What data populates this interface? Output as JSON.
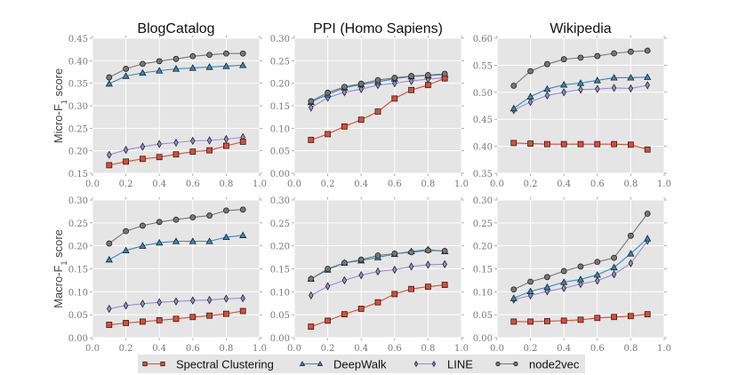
{
  "chart_data": [
    {
      "type": "line",
      "title": "BlogCatalog",
      "xlabel": "",
      "ylabel": "Micro-F1 score",
      "xlim": [
        0.0,
        1.0
      ],
      "ylim": [
        0.15,
        0.45
      ],
      "xticks": [
        "0.0",
        "0.2",
        "0.4",
        "0.6",
        "0.8",
        "1.0"
      ],
      "yticks": [
        "0.15",
        "0.20",
        "0.25",
        "0.30",
        "0.35",
        "0.40",
        "0.45"
      ],
      "grid": true,
      "x": [
        0.1,
        0.2,
        0.3,
        0.4,
        0.5,
        0.6,
        0.7,
        0.8,
        0.9
      ],
      "series": [
        {
          "name": "Spectral Clustering",
          "values": [
            0.168,
            0.176,
            0.182,
            0.186,
            0.192,
            0.198,
            0.201,
            0.211,
            0.22
          ]
        },
        {
          "name": "DeepWalk",
          "values": [
            0.349,
            0.366,
            0.373,
            0.378,
            0.382,
            0.384,
            0.386,
            0.388,
            0.39
          ]
        },
        {
          "name": "LINE",
          "values": [
            0.191,
            0.202,
            0.209,
            0.215,
            0.218,
            0.222,
            0.223,
            0.226,
            0.23
          ]
        },
        {
          "name": "node2vec",
          "values": [
            0.363,
            0.382,
            0.393,
            0.399,
            0.404,
            0.41,
            0.413,
            0.416,
            0.416
          ]
        }
      ]
    },
    {
      "type": "line",
      "title": "PPI (Homo Sapiens)",
      "xlabel": "",
      "ylabel": "",
      "xlim": [
        0.0,
        1.0
      ],
      "ylim": [
        0.0,
        0.3
      ],
      "xticks": [
        "0.0",
        "0.2",
        "0.4",
        "0.6",
        "0.8",
        "1.0"
      ],
      "yticks": [
        "0.00",
        "0.05",
        "0.10",
        "0.15",
        "0.20",
        "0.25",
        "0.30"
      ],
      "grid": true,
      "x": [
        0.1,
        0.2,
        0.3,
        0.4,
        0.5,
        0.6,
        0.7,
        0.8,
        0.9
      ],
      "series": [
        {
          "name": "Spectral Clustering",
          "values": [
            0.074,
            0.087,
            0.104,
            0.119,
            0.137,
            0.166,
            0.185,
            0.196,
            0.211
          ]
        },
        {
          "name": "DeepWalk",
          "values": [
            0.158,
            0.175,
            0.19,
            0.197,
            0.203,
            0.21,
            0.215,
            0.217,
            0.219
          ]
        },
        {
          "name": "LINE",
          "values": [
            0.146,
            0.168,
            0.18,
            0.187,
            0.196,
            0.2,
            0.205,
            0.209,
            0.212
          ]
        },
        {
          "name": "node2vec",
          "values": [
            0.16,
            0.179,
            0.192,
            0.199,
            0.207,
            0.212,
            0.216,
            0.218,
            0.221
          ]
        }
      ]
    },
    {
      "type": "line",
      "title": "Wikipedia",
      "xlabel": "",
      "ylabel": "",
      "xlim": [
        0.0,
        1.0
      ],
      "ylim": [
        0.35,
        0.6
      ],
      "xticks": [
        "0.0",
        "0.2",
        "0.4",
        "0.6",
        "0.8",
        "1.0"
      ],
      "yticks": [
        "0.35",
        "0.40",
        "0.45",
        "0.50",
        "0.55",
        "0.60"
      ],
      "grid": true,
      "x": [
        0.1,
        0.2,
        0.3,
        0.4,
        0.5,
        0.6,
        0.7,
        0.8,
        0.9
      ],
      "series": [
        {
          "name": "Spectral Clustering",
          "values": [
            0.406,
            0.405,
            0.404,
            0.404,
            0.404,
            0.404,
            0.404,
            0.403,
            0.394
          ]
        },
        {
          "name": "DeepWalk",
          "values": [
            0.47,
            0.492,
            0.506,
            0.514,
            0.517,
            0.522,
            0.527,
            0.527,
            0.528
          ]
        },
        {
          "name": "LINE",
          "values": [
            0.467,
            0.482,
            0.494,
            0.5,
            0.505,
            0.506,
            0.508,
            0.507,
            0.513
          ]
        },
        {
          "name": "node2vec",
          "values": [
            0.512,
            0.539,
            0.552,
            0.561,
            0.564,
            0.567,
            0.572,
            0.575,
            0.577
          ]
        }
      ]
    },
    {
      "type": "line",
      "title": "",
      "xlabel": "",
      "ylabel": "Macro-F1 score",
      "xlim": [
        0.0,
        1.0
      ],
      "ylim": [
        0.0,
        0.3
      ],
      "xticks": [
        "0.0",
        "0.2",
        "0.4",
        "0.6",
        "0.8",
        "1.0"
      ],
      "yticks": [
        "0.00",
        "0.05",
        "0.10",
        "0.15",
        "0.20",
        "0.25",
        "0.30"
      ],
      "grid": true,
      "x": [
        0.1,
        0.2,
        0.3,
        0.4,
        0.5,
        0.6,
        0.7,
        0.8,
        0.9
      ],
      "series": [
        {
          "name": "Spectral Clustering",
          "values": [
            0.028,
            0.032,
            0.035,
            0.038,
            0.041,
            0.045,
            0.048,
            0.052,
            0.058
          ]
        },
        {
          "name": "DeepWalk",
          "values": [
            0.17,
            0.19,
            0.2,
            0.207,
            0.21,
            0.21,
            0.21,
            0.219,
            0.223
          ]
        },
        {
          "name": "LINE",
          "values": [
            0.063,
            0.07,
            0.074,
            0.077,
            0.079,
            0.081,
            0.082,
            0.085,
            0.086
          ]
        },
        {
          "name": "node2vec",
          "values": [
            0.205,
            0.232,
            0.244,
            0.252,
            0.257,
            0.262,
            0.266,
            0.277,
            0.279
          ]
        }
      ]
    },
    {
      "type": "line",
      "title": "",
      "xlabel": "",
      "ylabel": "",
      "xlim": [
        0.0,
        1.0
      ],
      "ylim": [
        0.0,
        0.3
      ],
      "xticks": [
        "0.0",
        "0.2",
        "0.4",
        "0.6",
        "0.8",
        "1.0"
      ],
      "yticks": [
        "0.00",
        "0.05",
        "0.10",
        "0.15",
        "0.20",
        "0.25",
        "0.30"
      ],
      "grid": true,
      "x": [
        0.1,
        0.2,
        0.3,
        0.4,
        0.5,
        0.6,
        0.7,
        0.8,
        0.9
      ],
      "series": [
        {
          "name": "Spectral Clustering",
          "values": [
            0.024,
            0.037,
            0.051,
            0.063,
            0.077,
            0.095,
            0.106,
            0.111,
            0.115
          ]
        },
        {
          "name": "DeepWalk",
          "values": [
            0.128,
            0.148,
            0.163,
            0.168,
            0.175,
            0.182,
            0.188,
            0.192,
            0.188
          ]
        },
        {
          "name": "LINE",
          "values": [
            0.092,
            0.112,
            0.125,
            0.136,
            0.144,
            0.148,
            0.155,
            0.159,
            0.16
          ]
        },
        {
          "name": "node2vec",
          "values": [
            0.128,
            0.15,
            0.163,
            0.17,
            0.179,
            0.183,
            0.186,
            0.19,
            0.189
          ]
        }
      ]
    },
    {
      "type": "line",
      "title": "",
      "xlabel": "",
      "ylabel": "",
      "xlim": [
        0.0,
        1.0
      ],
      "ylim": [
        0.0,
        0.3
      ],
      "xticks": [
        "0.0",
        "0.2",
        "0.4",
        "0.6",
        "0.8",
        "1.0"
      ],
      "yticks": [
        "0.00",
        "0.05",
        "0.10",
        "0.15",
        "0.20",
        "0.25",
        "0.30"
      ],
      "grid": true,
      "x": [
        0.1,
        0.2,
        0.3,
        0.4,
        0.5,
        0.6,
        0.7,
        0.8,
        0.9
      ],
      "series": [
        {
          "name": "Spectral Clustering",
          "values": [
            0.035,
            0.035,
            0.036,
            0.037,
            0.039,
            0.043,
            0.045,
            0.047,
            0.051
          ]
        },
        {
          "name": "DeepWalk",
          "values": [
            0.086,
            0.101,
            0.11,
            0.121,
            0.127,
            0.137,
            0.153,
            0.183,
            0.216
          ]
        },
        {
          "name": "LINE",
          "values": [
            0.083,
            0.092,
            0.101,
            0.108,
            0.117,
            0.124,
            0.138,
            0.162,
            0.211
          ]
        },
        {
          "name": "node2vec",
          "values": [
            0.105,
            0.122,
            0.132,
            0.145,
            0.155,
            0.165,
            0.174,
            0.222,
            0.27
          ]
        }
      ]
    }
  ],
  "legend": {
    "placement": "bottom-center",
    "items": [
      {
        "name": "Spectral Clustering",
        "marker": "square",
        "color": "#e24a33"
      },
      {
        "name": "DeepWalk",
        "marker": "triangle",
        "color": "#348abd"
      },
      {
        "name": "LINE",
        "marker": "diamond",
        "color": "#988ed5"
      },
      {
        "name": "node2vec",
        "marker": "circle",
        "color": "#777777"
      }
    ]
  },
  "style": {
    "plot_background": "#e5e5e5",
    "grid_color": "#ffffff",
    "legend_background": "#e5e5e5"
  }
}
